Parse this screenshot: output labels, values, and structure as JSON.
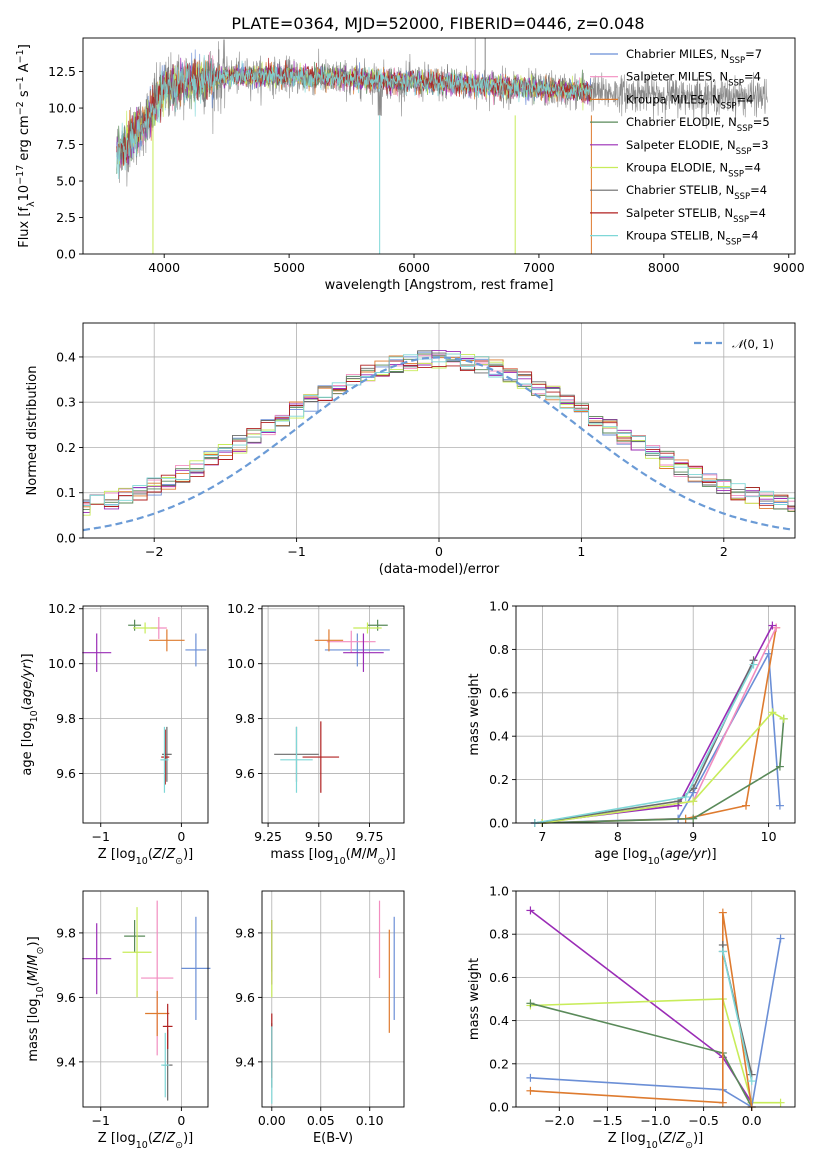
{
  "colors": {
    "ChabrierMILES": "#6b8fd6",
    "SalpeterMILES": "#f28ec0",
    "KroupaMILES": "#de7b2f",
    "ChabrierELODIE": "#5a8a5a",
    "SalpeterELODIE": "#9a2cb6",
    "KroupaELODIE": "#c8ec5a",
    "ChabrierSTELIB": "#6a6a6a",
    "SalpeterSTELIB": "#b02020",
    "KroupaSTELIB": "#7fd7d7",
    "normal": "#6b9bd6",
    "grid": "#b0b0b0"
  },
  "chart_data": [
    {
      "id": "spectrum",
      "type": "line",
      "title": "PLATE=0364, MJD=52000, FIBERID=0446, z=0.048",
      "xlabel": "wavelength [Angstrom, rest frame]",
      "ylabel": "Flux [fλ10⁻¹⁷ erg cm⁻² s⁻¹ A⁻¹]",
      "xlim": [
        3350,
        9050
      ],
      "ylim": [
        0,
        14.8
      ],
      "xticks": [
        4000,
        5000,
        6000,
        7000,
        8000,
        9000
      ],
      "yticks": [
        0.0,
        2.5,
        5.0,
        7.5,
        10.0,
        12.5
      ],
      "legend_position": "right",
      "legend": [
        {
          "key": "ChabrierMILES",
          "label": "Chabrier MILES, N",
          "n": "=7"
        },
        {
          "key": "SalpeterMILES",
          "label": "Salpeter MILES, N",
          "n": "=4"
        },
        {
          "key": "KroupaMILES",
          "label": "Kroupa MILES, N",
          "n": "=4"
        },
        {
          "key": "ChabrierELODIE",
          "label": "Chabrier ELODIE, N",
          "n": "=5"
        },
        {
          "key": "SalpeterELODIE",
          "label": "Salpeter ELODIE, N",
          "n": "=3"
        },
        {
          "key": "KroupaELODIE",
          "label": "Kroupa ELODIE, N",
          "n": "=4"
        },
        {
          "key": "ChabrierSTELIB",
          "label": "Chabrier STELIB, N",
          "n": "=4"
        },
        {
          "key": "SalpeterSTELIB",
          "label": "Salpeter STELIB, N",
          "n": "=4"
        },
        {
          "key": "KroupaSTELIB",
          "label": "Kroupa STELIB, N",
          "n": "=4"
        }
      ],
      "legend_subscript": "SSP",
      "continuum": [
        [
          3620,
          7.0
        ],
        [
          3700,
          7.5
        ],
        [
          3800,
          8.5
        ],
        [
          3900,
          9.8
        ],
        [
          4000,
          11.3
        ],
        [
          4200,
          11.8
        ],
        [
          4500,
          12.2
        ],
        [
          5000,
          12.2
        ],
        [
          5500,
          12.0
        ],
        [
          6000,
          11.8
        ],
        [
          6500,
          11.6
        ],
        [
          7000,
          11.3
        ],
        [
          7400,
          11.1
        ],
        [
          8000,
          10.9
        ],
        [
          8500,
          10.8
        ],
        [
          8830,
          10.8
        ]
      ],
      "observed_data_range": [
        3620,
        8830
      ],
      "model_range": [
        3620,
        7420
      ]
    },
    {
      "id": "residuals",
      "type": "line",
      "xlabel": "(data-model)/error",
      "ylabel": "Normed distribution",
      "xlim": [
        -2.5,
        2.5
      ],
      "ylim": [
        0,
        0.475
      ],
      "xticks": [
        -2,
        -1,
        0,
        1,
        2
      ],
      "yticks": [
        0.0,
        0.1,
        0.2,
        0.3,
        0.4
      ],
      "grid": true,
      "legend_position": "top-right",
      "legend": [
        {
          "label": "N(0, 1)",
          "style": "dashed"
        }
      ],
      "series": [
        {
          "name": "Normal distribution",
          "values": "pdf of N(0,1)"
        }
      ]
    },
    {
      "id": "age_vs_Z",
      "type": "scatter",
      "xlabel": "Z [log₁₀(Z/Z⊙)]",
      "ylabel": "age  [log₁₀(age/yr)]",
      "xlim": [
        -1.22,
        0.33
      ],
      "ylim": [
        9.42,
        10.21
      ],
      "xticks": [
        -1,
        0
      ],
      "yticks": [
        9.6,
        9.8,
        10.0,
        10.2
      ],
      "grid": true,
      "points": [
        {
          "key": "ChabrierMILES",
          "x": 0.18,
          "y": 10.05,
          "xerr": 0.13,
          "yerr": 0.06
        },
        {
          "key": "SalpeterMILES",
          "x": -0.28,
          "y": 10.13,
          "xerr": 0.1,
          "yerr": 0.04
        },
        {
          "key": "KroupaMILES",
          "x": -0.18,
          "y": 10.085,
          "xerr": 0.22,
          "yerr": 0.04
        },
        {
          "key": "ChabrierELODIE",
          "x": -0.58,
          "y": 10.14,
          "xerr": 0.08,
          "yerr": 0.02
        },
        {
          "key": "SalpeterELODIE",
          "x": -1.05,
          "y": 10.04,
          "xerr": 0.18,
          "yerr": 0.07
        },
        {
          "key": "KroupaELODIE",
          "x": -0.45,
          "y": 10.13,
          "xerr": 0.15,
          "yerr": 0.02
        },
        {
          "key": "ChabrierSTELIB",
          "x": -0.18,
          "y": 9.67,
          "xerr": 0.06,
          "yerr": 0.1
        },
        {
          "key": "SalpeterSTELIB",
          "x": -0.2,
          "y": 9.66,
          "xerr": 0.05,
          "yerr": 0.1
        },
        {
          "key": "KroupaSTELIB",
          "x": -0.21,
          "y": 9.65,
          "xerr": 0.05,
          "yerr": 0.12
        }
      ]
    },
    {
      "id": "age_vs_mass",
      "type": "scatter",
      "xlabel": "mass [log₁₀(M/M⊙)]",
      "ylabel": "",
      "xlim": [
        9.22,
        9.92
      ],
      "ylim": [
        9.42,
        10.21
      ],
      "xticks": [
        9.25,
        9.5,
        9.75
      ],
      "yticks": [
        9.6,
        9.8,
        10.0,
        10.2
      ],
      "grid": true,
      "points": [
        {
          "key": "ChabrierMILES",
          "x": 9.69,
          "y": 10.05,
          "xerr": 0.16,
          "yerr": 0.06
        },
        {
          "key": "SalpeterMILES",
          "x": 9.66,
          "y": 10.08,
          "xerr": 0.12,
          "yerr": 0.04
        },
        {
          "key": "KroupaMILES",
          "x": 9.55,
          "y": 10.085,
          "xerr": 0.07,
          "yerr": 0.04
        },
        {
          "key": "ChabrierELODIE",
          "x": 9.79,
          "y": 10.14,
          "xerr": 0.05,
          "yerr": 0.02
        },
        {
          "key": "SalpeterELODIE",
          "x": 9.72,
          "y": 10.04,
          "xerr": 0.1,
          "yerr": 0.07
        },
        {
          "key": "KroupaELODIE",
          "x": 9.74,
          "y": 10.13,
          "xerr": 0.07,
          "yerr": 0.02
        },
        {
          "key": "ChabrierSTELIB",
          "x": 9.39,
          "y": 9.67,
          "xerr": 0.11,
          "yerr": 0.1
        },
        {
          "key": "SalpeterSTELIB",
          "x": 9.51,
          "y": 9.66,
          "xerr": 0.09,
          "yerr": 0.13
        },
        {
          "key": "KroupaSTELIB",
          "x": 9.39,
          "y": 9.65,
          "xerr": 0.08,
          "yerr": 0.12
        }
      ]
    },
    {
      "id": "weight_vs_age",
      "type": "line",
      "xlabel": "age  [log₁₀(age/yr)]",
      "ylabel": "mass weight",
      "xlim": [
        6.65,
        10.35
      ],
      "ylim": [
        0,
        1.0
      ],
      "xticks": [
        7,
        8,
        9,
        10
      ],
      "yticks": [
        0.0,
        0.2,
        0.4,
        0.6,
        0.8,
        1.0
      ],
      "grid": true,
      "series": [
        {
          "key": "ChabrierMILES",
          "x": [
            6.9,
            8.8,
            9.0,
            10.0,
            10.15
          ],
          "y": [
            0.0,
            0.02,
            0.14,
            0.78,
            0.08
          ]
        },
        {
          "key": "KroupaMILES",
          "x": [
            7.0,
            8.9,
            9.7,
            10.1
          ],
          "y": [
            0.0,
            0.02,
            0.08,
            0.9
          ]
        },
        {
          "key": "SalpeterMILES",
          "x": [
            7.0,
            9.0,
            10.1
          ],
          "y": [
            0.0,
            0.1,
            0.9
          ]
        },
        {
          "key": "ChabrierELODIE",
          "x": [
            7.0,
            9.0,
            10.15,
            10.2
          ],
          "y": [
            0.0,
            0.02,
            0.26,
            0.48
          ]
        },
        {
          "key": "SalpeterELODIE",
          "x": [
            6.9,
            8.8,
            10.05
          ],
          "y": [
            0.0,
            0.08,
            0.91
          ]
        },
        {
          "key": "KroupaELODIE",
          "x": [
            7.0,
            9.0,
            10.05,
            10.2
          ],
          "y": [
            0.0,
            0.1,
            0.51,
            0.48
          ]
        },
        {
          "key": "ChabrierSTELIB",
          "x": [
            6.9,
            8.8,
            9.0,
            9.8
          ],
          "y": [
            0.0,
            0.1,
            0.16,
            0.75
          ]
        },
        {
          "key": "KroupaSTELIB",
          "x": [
            6.9,
            8.9,
            9.8
          ],
          "y": [
            0.0,
            0.12,
            0.73
          ]
        }
      ]
    },
    {
      "id": "mass_vs_Z",
      "type": "scatter",
      "xlabel": "Z [log₁₀(Z/Z⊙)]",
      "ylabel": "mass [log₁₀(M/M⊙)]",
      "xlim": [
        -1.22,
        0.33
      ],
      "ylim": [
        9.26,
        9.93
      ],
      "xticks": [
        -1,
        0
      ],
      "yticks": [
        9.4,
        9.6,
        9.8
      ],
      "grid": true,
      "points": [
        {
          "key": "ChabrierMILES",
          "x": 0.18,
          "y": 9.69,
          "xerr": 0.18,
          "yerr": 0.16
        },
        {
          "key": "SalpeterMILES",
          "x": -0.3,
          "y": 9.66,
          "xerr": 0.2,
          "yerr": 0.24
        },
        {
          "key": "KroupaMILES",
          "x": -0.3,
          "y": 9.55,
          "xerr": 0.15,
          "yerr": 0.07
        },
        {
          "key": "ChabrierELODIE",
          "x": -0.58,
          "y": 9.79,
          "xerr": 0.13,
          "yerr": 0.05
        },
        {
          "key": "SalpeterELODIE",
          "x": -1.05,
          "y": 9.72,
          "xerr": 0.18,
          "yerr": 0.11
        },
        {
          "key": "KroupaELODIE",
          "x": -0.55,
          "y": 9.74,
          "xerr": 0.18,
          "yerr": 0.14
        },
        {
          "key": "ChabrierSTELIB",
          "x": -0.17,
          "y": 9.39,
          "xerr": 0.06,
          "yerr": 0.11
        },
        {
          "key": "SalpeterSTELIB",
          "x": -0.17,
          "y": 9.51,
          "xerr": 0.06,
          "yerr": 0.07
        },
        {
          "key": "KroupaSTELIB",
          "x": -0.2,
          "y": 9.39,
          "xerr": 0.05,
          "yerr": 0.1
        }
      ]
    },
    {
      "id": "mass_vs_ebv",
      "type": "scatter",
      "xlabel": "E(B-V)",
      "ylabel": "",
      "xlim": [
        -0.01,
        0.135
      ],
      "ylim": [
        9.26,
        9.93
      ],
      "xticks": [
        0.0,
        0.05,
        0.1
      ],
      "yticks": [
        9.4,
        9.6,
        9.8
      ],
      "grid": true,
      "points": [
        {
          "key": "ChabrierMILES",
          "x": 0.125,
          "y": 9.69,
          "xerr": 0.0,
          "yerr": 0.16
        },
        {
          "key": "SalpeterMILES",
          "x": 0.11,
          "y": 9.78,
          "xerr": 0.0,
          "yerr": 0.12
        },
        {
          "key": "KroupaMILES",
          "x": 0.12,
          "y": 9.65,
          "xerr": 0.0,
          "yerr": 0.16
        },
        {
          "key": "ChabrierELODIE",
          "x": 0.0,
          "y": 9.76,
          "xerr": 0.0,
          "yerr": 0.08
        },
        {
          "key": "SalpeterELODIE",
          "x": 0.0,
          "y": 9.74,
          "xerr": 0.0,
          "yerr": 0.1
        },
        {
          "key": "KroupaELODIE",
          "x": 0.0,
          "y": 9.72,
          "xerr": 0.0,
          "yerr": 0.12
        },
        {
          "key": "ChabrierSTELIB",
          "x": 0.0,
          "y": 9.42,
          "xerr": 0.0,
          "yerr": 0.1
        },
        {
          "key": "SalpeterSTELIB",
          "x": 0.0,
          "y": 9.45,
          "xerr": 0.0,
          "yerr": 0.1
        },
        {
          "key": "KroupaSTELIB",
          "x": 0.0,
          "y": 9.39,
          "xerr": 0.0,
          "yerr": 0.12
        }
      ]
    },
    {
      "id": "weight_vs_Z",
      "type": "line",
      "xlabel": "Z [log₁₀(Z/Z⊙)]",
      "ylabel": "mass weight",
      "xlim": [
        -2.45,
        0.45
      ],
      "ylim": [
        0,
        1.0
      ],
      "xticks": [
        -2.0,
        -1.5,
        -1.0,
        -0.5,
        0.0
      ],
      "yticks": [
        0.0,
        0.2,
        0.4,
        0.6,
        0.8,
        1.0
      ],
      "grid": true,
      "series": [
        {
          "key": "SalpeterELODIE",
          "x": [
            -2.3,
            -0.3,
            0.0
          ],
          "y": [
            0.91,
            0.23,
            0.02
          ]
        },
        {
          "key": "KroupaELODIE",
          "x": [
            -2.3,
            -0.3,
            0.0,
            0.3
          ],
          "y": [
            0.47,
            0.5,
            0.02,
            0.02
          ]
        },
        {
          "key": "ChabrierELODIE",
          "x": [
            -2.3,
            -0.3,
            0.0
          ],
          "y": [
            0.48,
            0.25,
            0.0
          ]
        },
        {
          "key": "ChabrierMILES",
          "x": [
            -2.3,
            -0.3,
            0.0,
            0.3
          ],
          "y": [
            0.135,
            0.08,
            0.0,
            0.78
          ]
        },
        {
          "key": "KroupaMILES",
          "x": [
            -2.3,
            -0.3,
            -0.3,
            0.0
          ],
          "y": [
            0.075,
            0.02,
            0.9,
            0.0
          ]
        },
        {
          "key": "ChabrierSTELIB",
          "x": [
            -0.3,
            -0.3,
            0.0
          ],
          "y": [
            0.75,
            0.72,
            0.15
          ]
        },
        {
          "key": "KroupaSTELIB",
          "x": [
            -0.3,
            0.0
          ],
          "y": [
            0.72,
            0.12
          ]
        }
      ]
    }
  ]
}
